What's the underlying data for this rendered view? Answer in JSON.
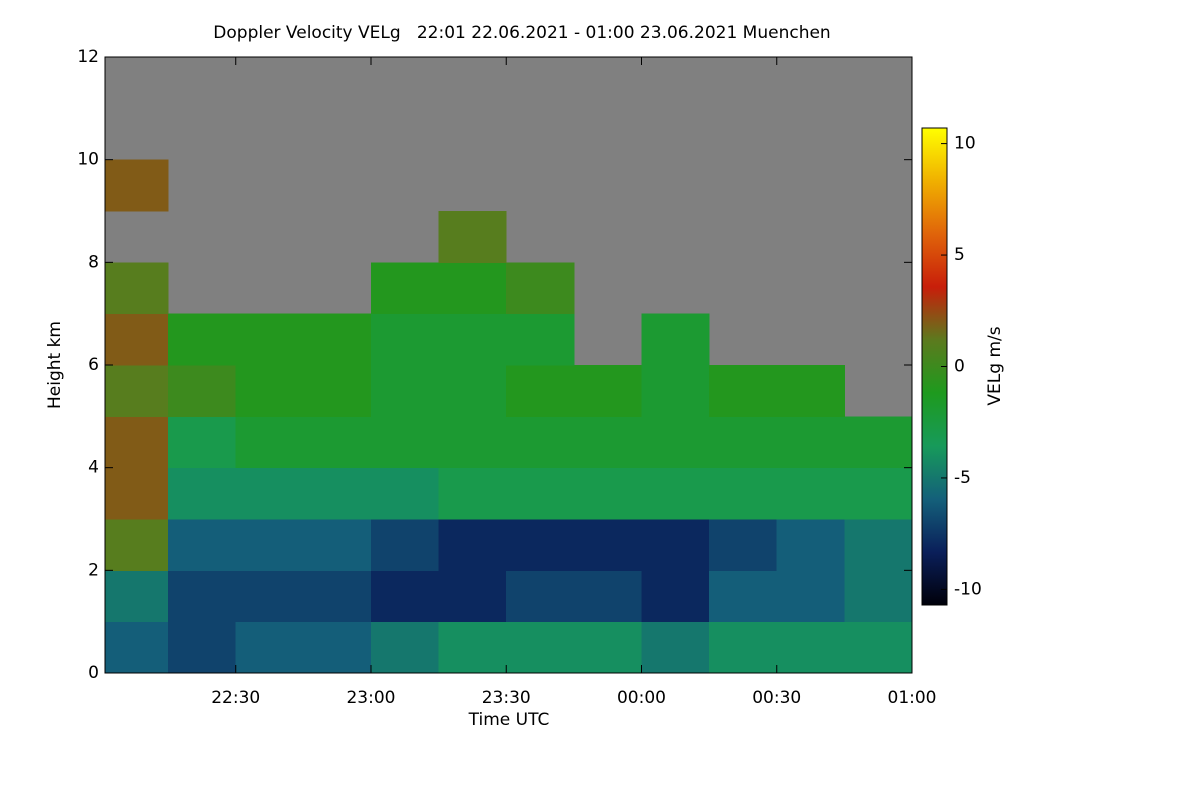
{
  "chart_data": {
    "type": "heatmap",
    "title": "Doppler Velocity VELg   22:01 22.06.2021 - 01:00 23.06.2021 Muenchen",
    "xlabel": "Time UTC",
    "ylabel": "Height km",
    "x_bins": [
      22.0167,
      22.25,
      22.5,
      22.75,
      23,
      23.25,
      23.5,
      23.75,
      24,
      24.25,
      24.5,
      24.75,
      25
    ],
    "y_bins": [
      0,
      1,
      2,
      3,
      4,
      5,
      6,
      7,
      8,
      9,
      10,
      11,
      12
    ],
    "z": [
      [
        -6,
        -7,
        -6,
        -6,
        -5,
        -4,
        -4,
        -4,
        -5,
        -4,
        -4,
        -4
      ],
      [
        -5,
        -7,
        -7,
        -7,
        -8,
        -8,
        -7,
        -7,
        -8,
        -6,
        -6,
        -5
      ],
      [
        1,
        -6,
        -6,
        -6,
        -7,
        -8,
        -8,
        -8,
        -8,
        -7,
        -6,
        -5
      ],
      [
        2,
        -4,
        -4,
        -4,
        -4,
        -3,
        -3,
        -3,
        -3,
        -3,
        -3,
        -3
      ],
      [
        2,
        -3,
        -2,
        -2,
        -2,
        -2,
        -2,
        -2,
        -2,
        -2,
        -2,
        -2
      ],
      [
        1,
        0,
        -1,
        -1,
        -2,
        -2,
        -1,
        -1,
        -2,
        -1,
        -1,
        null
      ],
      [
        2,
        -1,
        -1,
        -1,
        -2,
        -2,
        -2,
        null,
        -2,
        null,
        null,
        null
      ],
      [
        1,
        null,
        null,
        null,
        -1,
        -1,
        0,
        null,
        null,
        null,
        null,
        null
      ],
      [
        null,
        null,
        null,
        null,
        null,
        1,
        null,
        null,
        null,
        null,
        null,
        null
      ],
      [
        2,
        null,
        null,
        null,
        null,
        null,
        null,
        null,
        null,
        null,
        null,
        null
      ],
      [
        null,
        null,
        null,
        null,
        null,
        null,
        null,
        null,
        null,
        null,
        null,
        null
      ],
      [
        null,
        null,
        null,
        null,
        null,
        null,
        null,
        null,
        null,
        null,
        null,
        null
      ]
    ],
    "xlim": [
      22.0167,
      25
    ],
    "xticks": [
      {
        "value": 22.5,
        "label": "22:30"
      },
      {
        "value": 23,
        "label": "23:00"
      },
      {
        "value": 23.5,
        "label": "23:30"
      },
      {
        "value": 24,
        "label": "00:00"
      },
      {
        "value": 24.5,
        "label": "00:30"
      },
      {
        "value": 25,
        "label": "01:00"
      }
    ],
    "ylim": [
      0,
      12
    ],
    "yticks": [
      0,
      2,
      4,
      6,
      8,
      10,
      12
    ],
    "background": "#808080",
    "colorbar": {
      "label": "VELg m/s",
      "lim": [
        -10.7,
        10.7
      ],
      "ticks": [
        -10,
        -5,
        0,
        5,
        10
      ],
      "colormap": [
        "#00000a",
        "#0a1f5a",
        "#14607a",
        "#179a5a",
        "#1e9a1e",
        "#5c7a1e",
        "#c81e0a",
        "#e0640a",
        "#f0b000",
        "#ffff00"
      ]
    }
  }
}
